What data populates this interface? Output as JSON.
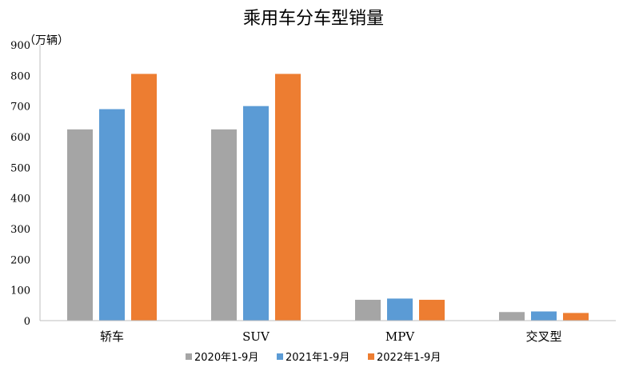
{
  "chart_data": {
    "type": "bar",
    "title": "乘用车分车型销量",
    "unit": "（万辆）",
    "categories": [
      "轿车",
      "SUV",
      "MPV",
      "交叉型"
    ],
    "series": [
      {
        "name": "2020年1-9月",
        "color": "#a5a5a5",
        "values": [
          624,
          624,
          68,
          28
        ]
      },
      {
        "name": "2021年1-9月",
        "color": "#5b9bd5",
        "values": [
          690,
          700,
          72,
          30
        ]
      },
      {
        "name": "2022年1-9月",
        "color": "#ed7d31",
        "values": [
          805,
          805,
          68,
          25
        ]
      }
    ],
    "ylim": [
      0,
      900
    ],
    "yticks": [
      "0",
      "100",
      "200",
      "300",
      "400",
      "500",
      "600",
      "700",
      "800",
      "900"
    ],
    "grid": false,
    "legend": "bottom"
  }
}
